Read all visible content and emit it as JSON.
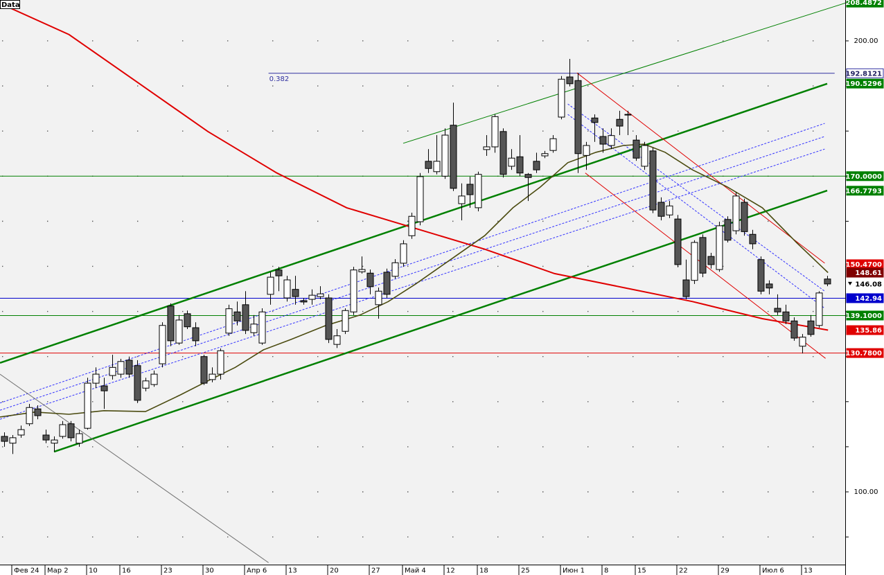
{
  "chart_data": {
    "type": "candlestick",
    "legend": "Data",
    "categories": [
      null,
      "Фев 24",
      null,
      null,
      null,
      "Мар 2",
      null,
      null,
      null,
      null,
      "10",
      null,
      null,
      null,
      "16",
      null,
      null,
      null,
      null,
      "23",
      null,
      null,
      null,
      null,
      "30",
      null,
      null,
      null,
      null,
      "Апр 6",
      null,
      null,
      null,
      null,
      "13",
      null,
      null,
      null,
      null,
      "20",
      null,
      null,
      null,
      null,
      "27",
      null,
      null,
      null,
      "Май 4",
      null,
      null,
      null,
      null,
      "12",
      null,
      null,
      null,
      "18",
      null,
      null,
      null,
      null,
      "25",
      null,
      null,
      null,
      null,
      "Июн 1",
      null,
      null,
      null,
      null,
      "8",
      null,
      null,
      null,
      "15",
      null,
      null,
      null,
      null,
      "22",
      null,
      null,
      null,
      null,
      "29",
      null,
      null,
      null,
      null,
      "Июл 6",
      null,
      null,
      null,
      null,
      "13",
      null,
      null,
      null
    ],
    "open": [
      112.3,
      110.8,
      112.6,
      115.1,
      118.4,
      112.6,
      110.8,
      112.3,
      115.1,
      110.8,
      114.1,
      124.1,
      123.5,
      125.8,
      126.1,
      129.2,
      128.0,
      123.0,
      123.8,
      128.4,
      141.2,
      133.0,
      139.5,
      136.4,
      130.0,
      124.9,
      126.1,
      135.2,
      139.9,
      141.5,
      135.3,
      133.0,
      143.8,
      149.2,
      143.0,
      144.9,
      142.4,
      142.7,
      143.3,
      143.0,
      132.7,
      135.6,
      139.9,
      148.8,
      148.5,
      141.5,
      148.7,
      147.8,
      150.7,
      156.8,
      159.9,
      173.3,
      171.0,
      170.0,
      181.3,
      163.9,
      168.2,
      163.0,
      175.9,
      176.5,
      179.9,
      172.2,
      174.3,
      170.4,
      173.3,
      174.5,
      175.7,
      183.1,
      192.0,
      191.2,
      174.6,
      182.9,
      178.8,
      176.8,
      182.6,
      183.7,
      178.0,
      172.2,
      175.6,
      164.2,
      161.4,
      160.5,
      147.0,
      146.9,
      156.4,
      152.2,
      149.3,
      160.4,
      157.9,
      164.2,
      157.1,
      151.5,
      146.1,
      140.7,
      139.9,
      137.9,
      132.3,
      137.9,
      136.9,
      147.2
    ],
    "high": [
      113.2,
      112.6,
      114.7,
      119.5,
      119.2,
      113.8,
      112.3,
      115.7,
      115.7,
      113.8,
      125.3,
      127.6,
      125.3,
      130.4,
      129.5,
      130.0,
      129.2,
      125.3,
      126.9,
      137.6,
      141.8,
      139.2,
      140.2,
      137.6,
      130.4,
      127.6,
      131.8,
      141.5,
      142.2,
      144.5,
      139.2,
      140.7,
      148.8,
      149.9,
      147.9,
      147.9,
      143.0,
      144.9,
      145.6,
      143.8,
      136.1,
      140.7,
      149.9,
      152.2,
      149.3,
      145.3,
      149.5,
      151.6,
      155.8,
      161.9,
      170.7,
      176.0,
      179.1,
      180.6,
      186.3,
      168.4,
      169.9,
      171.0,
      179.1,
      183.7,
      180.6,
      176.0,
      179.1,
      170.7,
      175.2,
      175.6,
      179.1,
      192.2,
      196.0,
      192.9,
      177.6,
      183.7,
      180.6,
      180.6,
      184.5,
      184.5,
      179.1,
      177.6,
      176.3,
      165.3,
      164.5,
      161.4,
      151.5,
      155.8,
      157.1,
      153.0,
      159.9,
      161.1,
      166.4,
      165.0,
      158.1,
      152.2,
      146.9,
      143.8,
      141.5,
      138.7,
      135.0,
      139.2,
      144.5,
      147.9
    ],
    "low": [
      110.0,
      108.4,
      112.0,
      114.6,
      116.1,
      110.8,
      108.9,
      111.8,
      111.2,
      110.0,
      113.8,
      123.0,
      118.4,
      124.9,
      125.3,
      125.3,
      119.7,
      122.3,
      123.3,
      127.6,
      132.3,
      132.6,
      136.1,
      132.3,
      123.7,
      124.3,
      124.9,
      134.6,
      136.9,
      135.0,
      134.6,
      132.6,
      141.5,
      144.5,
      142.2,
      141.5,
      141.5,
      141.5,
      142.7,
      133.0,
      131.9,
      135.0,
      139.2,
      148.4,
      143.8,
      138.4,
      143.0,
      147.3,
      149.9,
      156.1,
      159.1,
      170.7,
      170.4,
      169.4,
      166.7,
      160.2,
      163.0,
      162.2,
      174.5,
      175.2,
      169.7,
      171.4,
      170.0,
      164.5,
      170.7,
      174.0,
      175.2,
      182.6,
      189.9,
      170.7,
      171.4,
      177.6,
      175.2,
      176.0,
      179.1,
      179.1,
      173.4,
      171.4,
      161.8,
      160.2,
      160.7,
      149.8,
      142.7,
      146.1,
      147.6,
      149.5,
      148.8,
      155.3,
      157.1,
      156.8,
      153.8,
      143.8,
      143.8,
      139.2,
      137.2,
      133.5,
      130.7,
      134.4,
      136.4,
      145.6
    ],
    "close": [
      111.2,
      112.0,
      113.8,
      118.7,
      116.9,
      111.5,
      111.5,
      114.9,
      112.0,
      112.9,
      124.1,
      126.1,
      122.4,
      127.6,
      128.9,
      126.1,
      120.3,
      124.6,
      126.1,
      136.9,
      133.5,
      138.1,
      136.6,
      133.5,
      124.1,
      126.1,
      131.3,
      140.6,
      137.9,
      135.8,
      137.2,
      139.9,
      147.6,
      147.9,
      147.0,
      143.3,
      142.1,
      143.6,
      143.9,
      133.8,
      134.6,
      140.2,
      149.2,
      149.3,
      145.5,
      144.5,
      143.8,
      150.8,
      155.0,
      161.1,
      169.9,
      171.7,
      173.3,
      179.1,
      167.3,
      165.6,
      165.9,
      170.4,
      176.5,
      183.2,
      170.4,
      174.0,
      170.7,
      169.7,
      171.4,
      175.0,
      178.3,
      191.5,
      190.5,
      175.0,
      176.8,
      181.9,
      177.1,
      179.0,
      181.1,
      183.6,
      174.0,
      176.8,
      162.5,
      161.1,
      163.4,
      150.4,
      143.3,
      155.3,
      148.5,
      150.4,
      159.0,
      155.8,
      165.6,
      157.7,
      155.0,
      144.5,
      145.2,
      139.9,
      137.9,
      134.1,
      134.3,
      134.9,
      144.1,
      146.1
    ],
    "up_color": "#ffffff",
    "down_color": "#555555",
    "xlim": [
      -0.5,
      101.17
    ],
    "ylim": [
      83.87,
      209.06
    ],
    "yticks": [
      {
        "value": 100,
        "label": "100.00"
      },
      {
        "value": 200,
        "label": "200.00"
      }
    ],
    "minor_yticks": [
      90,
      110,
      120,
      130,
      140,
      150,
      160,
      170,
      180,
      190
    ],
    "grid": true,
    "levels": [
      {
        "value": 170,
        "color": "#008000"
      },
      {
        "value": 142.94,
        "color": "#0000cc"
      },
      {
        "value": 139.1,
        "color": "#008000"
      },
      {
        "value": 130.78,
        "color": "#e00000"
      },
      {
        "value": 192.8121,
        "color": "#3030a0",
        "x": [
          31.8,
          99.9
        ],
        "note": "0.382"
      }
    ],
    "lines": [
      {
        "color": "#008000",
        "width": 1,
        "x": [
          48,
          101.2
        ],
        "values": [
          177.3,
          208.4
        ]
      },
      {
        "color": "#008000",
        "width": 2.5,
        "x": [
          -0.5,
          99
        ],
        "values": [
          128.6,
          190.5
        ]
      },
      {
        "color": "#008000",
        "width": 2.5,
        "x": [
          6,
          99
        ],
        "values": [
          108.9,
          166.8
        ]
      },
      {
        "color": "#3333ff",
        "width": 1,
        "dash": "3 2",
        "x": [
          -0.5,
          98.7
        ],
        "values": [
          119.7,
          181.7
        ]
      },
      {
        "color": "#3333ff",
        "width": 1,
        "dash": "3 2",
        "x": [
          -0.5,
          98.7
        ],
        "values": [
          118.1,
          178.8
        ]
      },
      {
        "color": "#3333ff",
        "width": 1,
        "dash": "3 2",
        "x": [
          -0.5,
          98.7
        ],
        "values": [
          116.1,
          176.0
        ]
      },
      {
        "color": "#e00000",
        "width": 1,
        "x": [
          68.9,
          98.7
        ],
        "values": [
          192.9,
          150.7
        ]
      },
      {
        "color": "#e00000",
        "width": 1,
        "x": [
          69.9,
          98.8
        ],
        "values": [
          170.7,
          129.6
        ]
      },
      {
        "color": "#3333ff",
        "width": 1,
        "dash": "3 2",
        "x": [
          67.8,
          98.7
        ],
        "values": [
          186.0,
          144.5
        ]
      },
      {
        "color": "#3333ff",
        "width": 1,
        "dash": "3 2",
        "x": [
          67.8,
          98.7
        ],
        "values": [
          183.7,
          140.7
        ]
      },
      {
        "color": "#707070",
        "width": 1,
        "x": [
          -0.5,
          31.8
        ],
        "values": [
          126.1,
          84.3
        ]
      },
      {
        "color": "#e00000",
        "width": 2,
        "x": [
          -0.5,
          7.8,
          16.2,
          24.5,
          32.8,
          41.2,
          49.5,
          57.8,
          66.2,
          74.5,
          82.8,
          91.2,
          99.1
        ],
        "values": [
          208.3,
          201.4,
          190.6,
          179.9,
          170.7,
          163.0,
          158.4,
          153.8,
          148.4,
          145.3,
          142.2,
          138.4,
          135.86
        ]
      },
      {
        "color": "#4b4b10",
        "width": 1.6,
        "x": [
          -0.5,
          3.7,
          7.8,
          12,
          17,
          21.2,
          24.5,
          27.8,
          31.2,
          34.5,
          38.7,
          42.8,
          46.2,
          49.5,
          53.7,
          57.8,
          61.2,
          64.5,
          67.8,
          71.2,
          74.5,
          77,
          79.5,
          82.8,
          87,
          91.2,
          95.3,
          99.1
        ],
        "values": [
          116.6,
          117.7,
          117.2,
          118.0,
          117.8,
          121.5,
          124.6,
          127.6,
          131.5,
          133.8,
          136.9,
          139.2,
          142.2,
          146.1,
          151.5,
          156.8,
          163.0,
          167.6,
          173.0,
          175.3,
          176.8,
          177.1,
          175.3,
          171.4,
          167.6,
          163.0,
          155.3,
          148.61
        ]
      }
    ],
    "price_labels": [
      {
        "value": 208.4872,
        "label": "208.4872",
        "background": "#008000",
        "color": "#ffffff"
      },
      {
        "value": 192.8121,
        "label": "192.8121",
        "background": "#ffffff",
        "color": "#202060",
        "border": "#3030a0"
      },
      {
        "value": 190.5296,
        "label": "190.5296",
        "background": "#008000",
        "color": "#ffffff"
      },
      {
        "value": 170,
        "label": "170.0000",
        "background": "#008000",
        "color": "#ffffff"
      },
      {
        "value": 166.7793,
        "label": "166.7793",
        "background": "#008000",
        "color": "#ffffff"
      },
      {
        "value": 150.47,
        "label": "150.4700",
        "background": "#e00000",
        "color": "#ffffff"
      },
      {
        "value": 148.61,
        "background": "#800000",
        "color": "#ffffff"
      },
      {
        "value": 146.08,
        "background": "#ffffff",
        "color": "#000000"
      },
      {
        "value": 142.94,
        "background": "#0000cc",
        "color": "#ffffff"
      },
      {
        "value": 139.1,
        "label": "139.1000",
        "background": "#008000",
        "color": "#ffffff"
      },
      {
        "value": 135.86,
        "background": "#e00000",
        "color": "#ffffff"
      },
      {
        "value": 130.78,
        "label": "130.7800",
        "background": "#e00000",
        "color": "#ffffff"
      }
    ]
  }
}
